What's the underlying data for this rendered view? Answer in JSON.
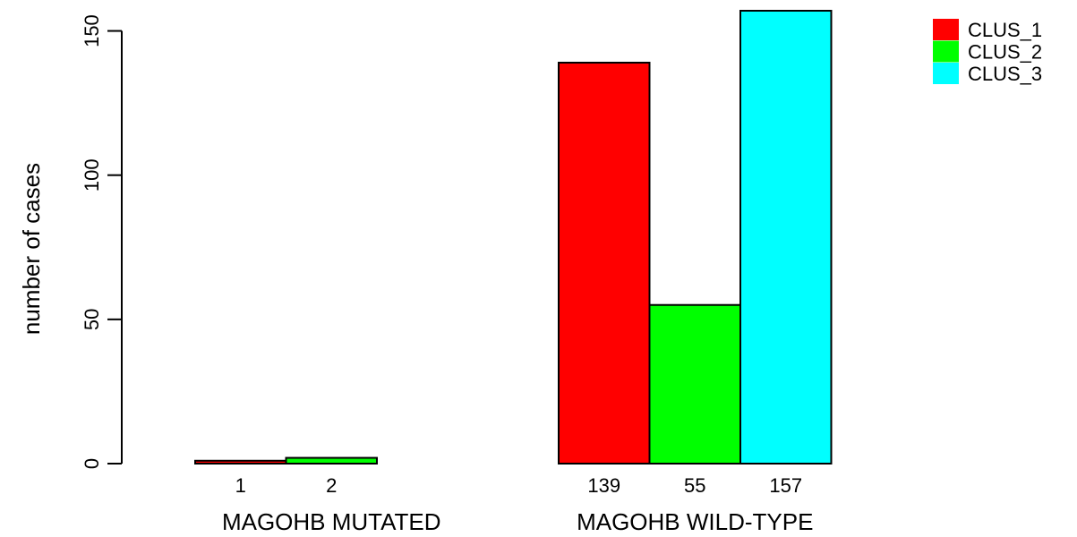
{
  "chart_data": {
    "type": "bar",
    "ylabel": "number of cases",
    "ylim": [
      0,
      157
    ],
    "yticks": [
      0,
      50,
      100,
      150
    ],
    "groups": [
      "MAGOHB MUTATED",
      "MAGOHB WILD-TYPE"
    ],
    "series": [
      {
        "name": "CLUS_1",
        "color": "#ff0000",
        "values": [
          1,
          139
        ]
      },
      {
        "name": "CLUS_2",
        "color": "#00ff00",
        "values": [
          2,
          55
        ]
      },
      {
        "name": "CLUS_3",
        "color": "#00ffff",
        "values": [
          0,
          157
        ]
      }
    ],
    "count_labels": [
      [
        "1",
        "2",
        ""
      ],
      [
        "139",
        "55",
        "157"
      ]
    ],
    "legend_position": "top-right"
  }
}
